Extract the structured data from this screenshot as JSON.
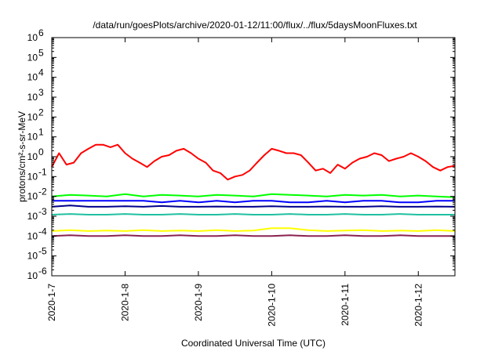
{
  "chart_data": {
    "type": "line",
    "title": "/data/run/goesPlots/archive/2020-01-12/11:00/flux/../flux/5daysMoonFluxes.txt",
    "xlabel": "Coordinated Universal Time (UTC)",
    "ylabel": "protons/cm²-s-sr-MeV",
    "yscale": "log",
    "ylim": [
      1e-06,
      1000000.0
    ],
    "xlim": [
      0,
      5.5
    ],
    "x_ticks": [
      {
        "x": 0,
        "label": "2020-1-7"
      },
      {
        "x": 1,
        "label": "2020-1-8"
      },
      {
        "x": 2,
        "label": "2020-1-9"
      },
      {
        "x": 3,
        "label": "2020-1-10"
      },
      {
        "x": 4,
        "label": "2020-1-11"
      },
      {
        "x": 5,
        "label": "2020-1-12"
      }
    ],
    "y_ticks": [
      {
        "v": 1e-06,
        "base": "10",
        "exp": "-6"
      },
      {
        "v": 1e-05,
        "base": "10",
        "exp": "-5"
      },
      {
        "v": 0.0001,
        "base": "10",
        "exp": "-4"
      },
      {
        "v": 0.001,
        "base": "10",
        "exp": "-3"
      },
      {
        "v": 0.01,
        "base": "10",
        "exp": "-2"
      },
      {
        "v": 0.1,
        "base": "10",
        "exp": "-1"
      },
      {
        "v": 1.0,
        "base": "10",
        "exp": "0"
      },
      {
        "v": 10.0,
        "base": "10",
        "exp": "1"
      },
      {
        "v": 100.0,
        "base": "10",
        "exp": "2"
      },
      {
        "v": 1000.0,
        "base": "10",
        "exp": "3"
      },
      {
        "v": 10000.0,
        "base": "10",
        "exp": "4"
      },
      {
        "v": 100000.0,
        "base": "10",
        "exp": "5"
      },
      {
        "v": 1000000.0,
        "base": "10",
        "exp": "6"
      }
    ],
    "grid": false,
    "series": [
      {
        "color": "#ff0000",
        "x": [
          0.0,
          0.1,
          0.2,
          0.3,
          0.4,
          0.5,
          0.6,
          0.7,
          0.8,
          0.9,
          1.0,
          1.1,
          1.2,
          1.3,
          1.4,
          1.5,
          1.6,
          1.7,
          1.8,
          1.9,
          2.0,
          2.1,
          2.2,
          2.3,
          2.4,
          2.5,
          2.6,
          2.7,
          2.8,
          2.9,
          3.0,
          3.1,
          3.2,
          3.3,
          3.4,
          3.5,
          3.6,
          3.7,
          3.8,
          3.9,
          4.0,
          4.1,
          4.2,
          4.3,
          4.4,
          4.5,
          4.6,
          4.7,
          4.8,
          4.9,
          5.0,
          5.1,
          5.2,
          5.3,
          5.4,
          5.5
        ],
        "y": [
          0.3,
          1.5,
          0.4,
          0.5,
          1.5,
          2.5,
          4,
          4,
          3,
          4,
          1.5,
          0.8,
          0.5,
          0.3,
          0.6,
          1,
          1.2,
          2,
          2.5,
          1.5,
          0.8,
          0.5,
          0.2,
          0.15,
          0.07,
          0.1,
          0.12,
          0.2,
          0.5,
          1.2,
          2.5,
          2,
          1.5,
          1.5,
          1.2,
          0.5,
          0.2,
          0.25,
          0.15,
          0.4,
          0.25,
          0.5,
          0.8,
          1,
          1.5,
          1.2,
          0.6,
          0.8,
          1,
          1.5,
          1,
          0.6,
          0.3,
          0.2,
          0.3,
          0.35
        ]
      },
      {
        "color": "#00ff00",
        "x": [
          0.0,
          0.25,
          0.5,
          0.75,
          1.0,
          1.25,
          1.5,
          1.75,
          2.0,
          2.25,
          2.5,
          2.75,
          3.0,
          3.25,
          3.5,
          3.75,
          4.0,
          4.25,
          4.5,
          4.75,
          5.0,
          5.25,
          5.5
        ],
        "y": [
          0.01,
          0.012,
          0.011,
          0.01,
          0.013,
          0.01,
          0.012,
          0.011,
          0.01,
          0.012,
          0.011,
          0.01,
          0.013,
          0.012,
          0.011,
          0.01,
          0.012,
          0.011,
          0.012,
          0.01,
          0.011,
          0.01,
          0.009
        ]
      },
      {
        "color": "#0000ff",
        "x": [
          0.0,
          0.25,
          0.5,
          0.75,
          1.0,
          1.25,
          1.5,
          1.75,
          2.0,
          2.25,
          2.5,
          2.75,
          3.0,
          3.25,
          3.5,
          3.75,
          4.0,
          4.25,
          4.5,
          4.75,
          5.0,
          5.25,
          5.5
        ],
        "y": [
          0.006,
          0.006,
          0.006,
          0.006,
          0.006,
          0.006,
          0.005,
          0.006,
          0.005,
          0.006,
          0.005,
          0.006,
          0.006,
          0.005,
          0.005,
          0.006,
          0.005,
          0.006,
          0.006,
          0.005,
          0.005,
          0.006,
          0.006
        ]
      },
      {
        "color": "#00008b",
        "x": [
          0.0,
          0.25,
          0.5,
          0.75,
          1.0,
          1.25,
          1.5,
          1.75,
          2.0,
          2.25,
          2.5,
          2.75,
          3.0,
          3.25,
          3.5,
          3.75,
          4.0,
          4.25,
          4.5,
          4.75,
          5.0,
          5.25,
          5.5
        ],
        "y": [
          0.003,
          0.0035,
          0.003,
          0.003,
          0.0032,
          0.003,
          0.0033,
          0.003,
          0.003,
          0.0031,
          0.003,
          0.003,
          0.0032,
          0.003,
          0.003,
          0.0031,
          0.003,
          0.003,
          0.0032,
          0.003,
          0.003,
          0.0031,
          0.003
        ]
      },
      {
        "color": "#20c0a0",
        "x": [
          0.0,
          0.25,
          0.5,
          0.75,
          1.0,
          1.25,
          1.5,
          1.75,
          2.0,
          2.25,
          2.5,
          2.75,
          3.0,
          3.25,
          3.5,
          3.75,
          4.0,
          4.25,
          4.5,
          4.75,
          5.0,
          5.25,
          5.5
        ],
        "y": [
          0.0012,
          0.0013,
          0.0012,
          0.0012,
          0.0013,
          0.0012,
          0.0012,
          0.0013,
          0.0012,
          0.0012,
          0.0013,
          0.0012,
          0.0012,
          0.0013,
          0.0012,
          0.0012,
          0.0013,
          0.0012,
          0.0012,
          0.0013,
          0.0012,
          0.0012,
          0.0012
        ]
      },
      {
        "color": "#ffff00",
        "x": [
          0.0,
          0.25,
          0.5,
          0.75,
          1.0,
          1.25,
          1.5,
          1.75,
          2.0,
          2.25,
          2.5,
          2.75,
          3.0,
          3.25,
          3.5,
          3.75,
          4.0,
          4.25,
          4.5,
          4.75,
          5.0,
          5.25,
          5.5
        ],
        "y": [
          0.00018,
          0.0002,
          0.00018,
          0.00019,
          0.00018,
          0.0002,
          0.00018,
          0.00019,
          0.00018,
          0.0002,
          0.00018,
          0.00019,
          0.00025,
          0.00025,
          0.0002,
          0.00018,
          0.00019,
          0.0002,
          0.00018,
          0.00019,
          0.00018,
          0.0002,
          0.00018
        ]
      },
      {
        "color": "#8b2252",
        "x": [
          0.0,
          0.25,
          0.5,
          0.75,
          1.0,
          1.25,
          1.5,
          1.75,
          2.0,
          2.25,
          2.5,
          2.75,
          3.0,
          3.25,
          3.5,
          3.75,
          4.0,
          4.25,
          4.5,
          4.75,
          5.0,
          5.25,
          5.5
        ],
        "y": [
          0.0001,
          0.00011,
          0.0001,
          0.0001,
          0.00011,
          0.0001,
          0.0001,
          0.00011,
          0.0001,
          0.0001,
          0.00011,
          0.0001,
          0.0001,
          0.00011,
          0.0001,
          0.0001,
          0.00011,
          0.0001,
          0.0001,
          0.00011,
          0.0001,
          0.0001,
          0.0001
        ]
      }
    ]
  }
}
